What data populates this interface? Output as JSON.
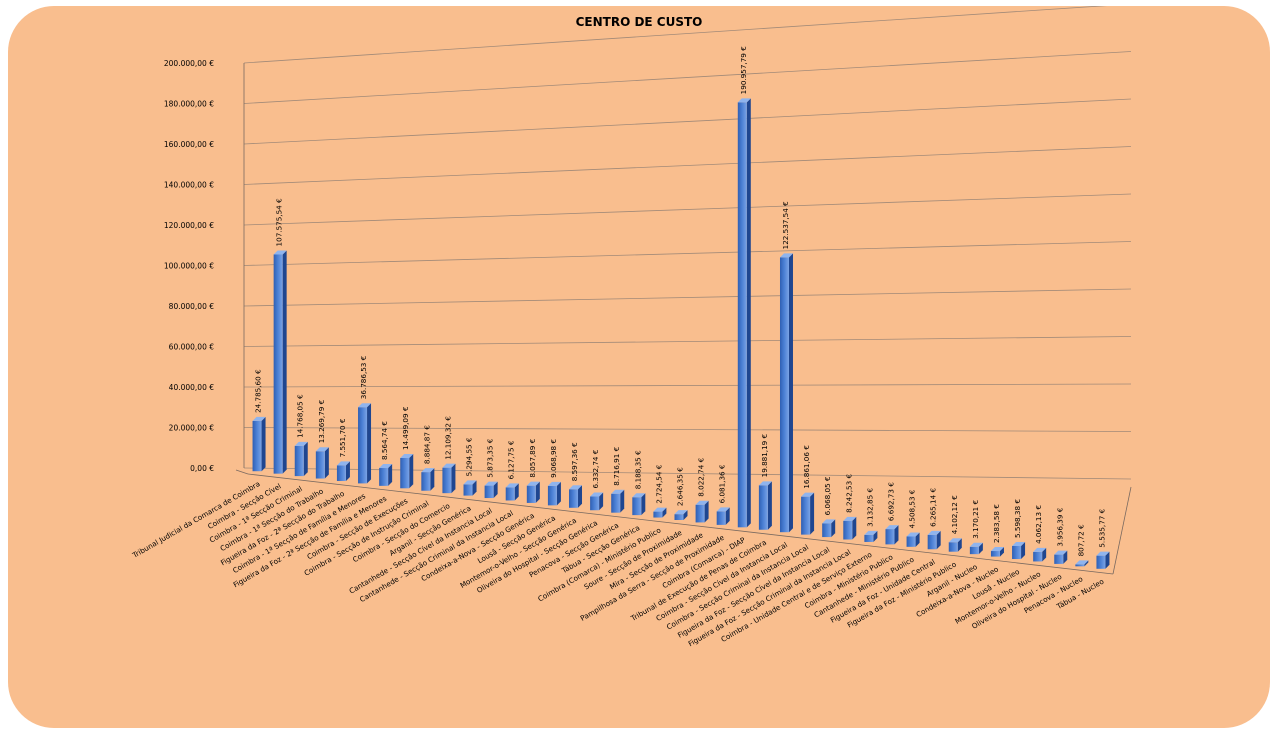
{
  "chart_data": {
    "type": "bar",
    "title": "CENTRO DE CUSTO",
    "ylim": [
      0,
      200000
    ],
    "yticks": [
      "0,00 €",
      "20.000,00 €",
      "40.000,00 €",
      "60.000,00 €",
      "80.000,00 €",
      "100.000,00 €",
      "120.000,00 €",
      "140.000,00 €",
      "160.000,00 €",
      "180.000,00 €",
      "200.000,00 €"
    ],
    "grid": true,
    "legend": "none",
    "bar_color": "#4a7fd4",
    "categories": [
      "Tribunal Judicial da Comarca de Coimbra",
      "Coimbra - Secção Cível",
      "Coimbra - 1ª Secção Criminal",
      "Coimbra - 1ª Secção do Trabalho",
      "Figueira da Foz - 2ª Secção do Trabalho",
      "Coimbra - 1ª Secção de Família e Menores",
      "Figueira da Foz - 2ª Secção de Família e Menores",
      "Coimbra - Secção de Execuções",
      "Coimbra - Secção de Instrução Criminal",
      "Coimbra - Secção do Comercio",
      "Arganil - Secção Genérica",
      "Cantanhede - Secção Cível da Instancia Local",
      "Cantanhede - Secção Criminal da Instancia Local",
      "Condeixa-a-Nova - Secção Genérica",
      "Lousã - Secção Genérica",
      "Montemor-o-Velho - Secção Genérica",
      "Oliveira do Hospital - Secção Genérica",
      "Penacova - Secção Genérica",
      "Tábua - Secção Genérica",
      "Coimbra (Comarca) - Ministério Publico",
      "Soure - Secção de Proximidade",
      "Mira - Secção de Proximidade",
      "Pampilhosa da Serra - Secção de Proximidade",
      "Coimbra (Comarca) - DIAP",
      "Tribunal de Execução de Penas de Coimbra",
      "Coimbra - Secção Cível da Instancia Local",
      "Coimbra - Secção Criminal da Instancia Local",
      "Figueira da Foz - Secção Cível da Instancia Local",
      "Figueira da Foz - Secção Criminal da Instancia Local",
      "Coimbra - Unidade Central e de Serviço Externo",
      "Coimbra - Ministério Publico",
      "Cantanhede - Ministério Publico",
      "Figueira da Foz - Unidade Central",
      "Figueira da Foz - Ministério Publico",
      "Arganil - Nucleo",
      "Condeixa-a-Nova - Nucleo",
      "Lousã - Nucleo",
      "Montemor-o-Velho - Nucleo",
      "Oliveira do Hospital - Nucleo",
      "Penacova - Nucleo",
      "Tábua - Nucleo"
    ],
    "values": [
      24785.6,
      107575.54,
      14768.05,
      13269.79,
      7551.7,
      36786.53,
      8564.74,
      14499.09,
      8884.87,
      12109.32,
      5294.55,
      5873.35,
      6127.75,
      8057.89,
      9068.98,
      8597.36,
      6332.74,
      8716.91,
      8188.35,
      2724.54,
      2646.35,
      8022.74,
      6081.36,
      190957.79,
      19881.19,
      122537.54,
      16861.06,
      6068.05,
      8242.53,
      3132.85,
      6692.73,
      4508.53,
      6265.14,
      4102.12,
      3170.21,
      2383.58,
      5598.38,
      4062.13,
      3956.39,
      807.72,
      5535.77
    ],
    "data_labels": [
      "24.785,60 €",
      "107.575,54 €",
      "14.768,05 €",
      "13.269,79 €",
      "7.551,70 €",
      "36.786,53 €",
      "8.564,74 €",
      "14.499,09 €",
      "8.884,87 €",
      "12.109,32 €",
      "5.294,55 €",
      "5.873,35 €",
      "6.127,75 €",
      "8.057,89 €",
      "9.068,98 €",
      "8.597,36 €",
      "6.332,74 €",
      "8.716,91 €",
      "8.188,35 €",
      "2.724,54 €",
      "2.646,35 €",
      "8.022,74 €",
      "6.081,36 €",
      "190.957,79 €",
      "19.881,19 €",
      "122.537,54 €",
      "16.861,06 €",
      "6.068,05 €",
      "8.242,53 €",
      "3.132,85 €",
      "6.692,73 €",
      "4.508,53 €",
      "6.265,14 €",
      "4.102,12 €",
      "3.170,21 €",
      "2.383,58 €",
      "5.598,38 €",
      "4.062,13 €",
      "3.956,39 €",
      "807,72 €",
      "5.535,77 €"
    ]
  }
}
